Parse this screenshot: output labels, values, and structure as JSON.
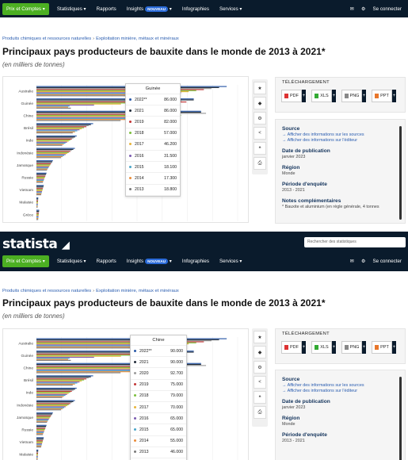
{
  "nav": {
    "prix_label": "Prix et Comptes ▾",
    "items": [
      "Statistiques ▾",
      "Rapports",
      "Insights",
      "Infographies",
      "Services ▾"
    ],
    "badge": "NOUVEAU",
    "login": "Se connecter"
  },
  "logo": "statista",
  "search_placeholder": "Rechercher des statistiques",
  "breadcrumb": [
    "Produits chimiques et ressources naturelles",
    "Exploitation minière, métaux et minéraux"
  ],
  "page_title": "Principaux pays producteurs de bauxite dans le monde de 2013 à 2021*",
  "page_subtitle": "(en milliers de tonnes)",
  "download": {
    "label": "TÉLÉCHARGEMENT",
    "formats": [
      "PDF",
      "XLS",
      "PNG",
      "PPT"
    ]
  },
  "source_panel": {
    "source_heading": "Source",
    "source_links": [
      "Afficher des informations sur les sources",
      "Afficher des informations sur l'éditeur"
    ],
    "pub_heading": "Date de publication",
    "pub_value": "janvier 2023",
    "region_heading": "Région",
    "region_value": "Monde",
    "period_heading": "Période d'enquête",
    "period_value": "2013 - 2021",
    "notes_heading": "Notes complémentaires",
    "notes_value": "* Bauxite et aluminium (en règle générale, 4 tonnes"
  },
  "colors": {
    "nav_bg": "#0a1b2c",
    "accent_green": "#4caf22",
    "link_blue": "#2a5db0"
  },
  "chart_data": {
    "type": "bar",
    "orientation": "horizontal",
    "categories": [
      "Australie",
      "Guinée",
      "Chine",
      "Brésil",
      "Inde",
      "Indonésie",
      "Jamaïque",
      "Russie",
      "Vietnam",
      "Malaisie",
      "Grèce"
    ],
    "series_years": [
      "2022**",
      "2021",
      "2020",
      "2019",
      "2018",
      "2017",
      "2016",
      "2015",
      "2014",
      "2013"
    ],
    "series_colors": [
      "#2b5aa8",
      "#222c3a",
      "#9b9b9b",
      "#c23535",
      "#7bbe3b",
      "#e7b43a",
      "#7b5bb0",
      "#4aa5c9",
      "#e98c39",
      "#7a7a7a"
    ],
    "tooltips": [
      {
        "title": "Guinée",
        "rows": [
          {
            "year": "2022**",
            "value": "86.000"
          },
          {
            "year": "2021",
            "value": "86.000"
          },
          {
            "year": "2019",
            "value": "82.000"
          },
          {
            "year": "2018",
            "value": "57.000"
          },
          {
            "year": "2017",
            "value": "46.200"
          },
          {
            "year": "2016",
            "value": "31.500"
          },
          {
            "year": "2015",
            "value": "18.100"
          },
          {
            "year": "2014",
            "value": "17.300"
          },
          {
            "year": "2013",
            "value": "18.800"
          }
        ]
      },
      {
        "title": "Chine",
        "rows": [
          {
            "year": "2022**",
            "value": "90.000"
          },
          {
            "year": "2021",
            "value": "90.000"
          },
          {
            "year": "2020",
            "value": "92.700"
          },
          {
            "year": "2019",
            "value": "75.000"
          },
          {
            "year": "2018",
            "value": "79.000"
          },
          {
            "year": "2017",
            "value": "70.000"
          },
          {
            "year": "2016",
            "value": "65.000"
          },
          {
            "year": "2015",
            "value": "65.000"
          },
          {
            "year": "2014",
            "value": "55.000"
          },
          {
            "year": "2013",
            "value": "46.000"
          }
        ]
      }
    ]
  }
}
